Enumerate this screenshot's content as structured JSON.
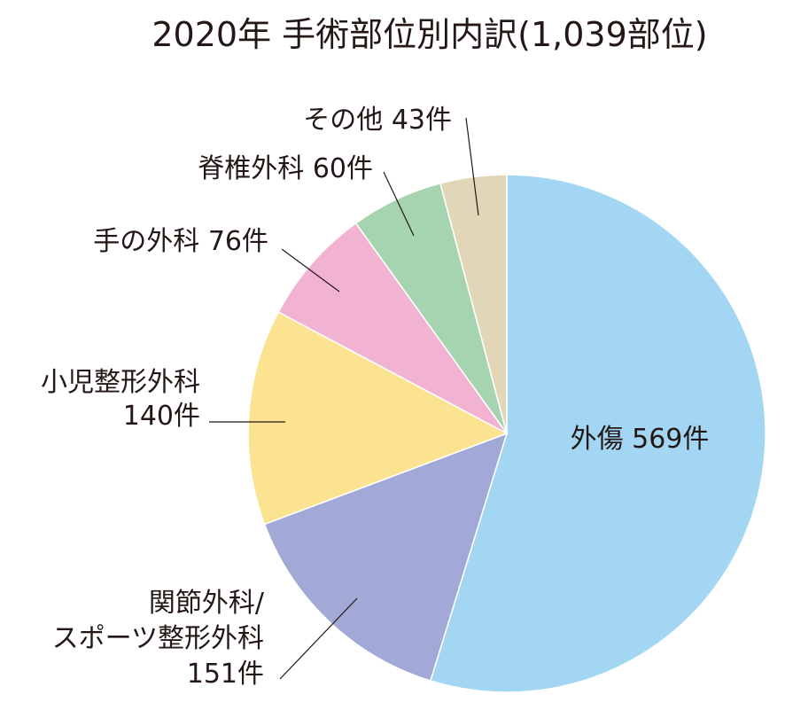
{
  "chart_data": {
    "type": "pie",
    "title": "2020年 手術部位別内訳(1,039部位)",
    "total": 1039,
    "slices": [
      {
        "lines": [
          "外傷 569件"
        ],
        "value": 569,
        "color": "#a3d6f3"
      },
      {
        "lines": [
          "関節外科/",
          "スポーツ整形外科",
          "151件"
        ],
        "value": 151,
        "color": "#a3a9d6"
      },
      {
        "lines": [
          "小児整形外科",
          "140件"
        ],
        "value": 140,
        "color": "#fbe392"
      },
      {
        "lines": [
          "手の外科 76件"
        ],
        "value": 76,
        "color": "#f2b3d2"
      },
      {
        "lines": [
          "脊椎外科 60件"
        ],
        "value": 60,
        "color": "#a7d4b0"
      },
      {
        "lines": [
          "その他 43件"
        ],
        "value": 43,
        "color": "#e1d6b8"
      }
    ]
  }
}
